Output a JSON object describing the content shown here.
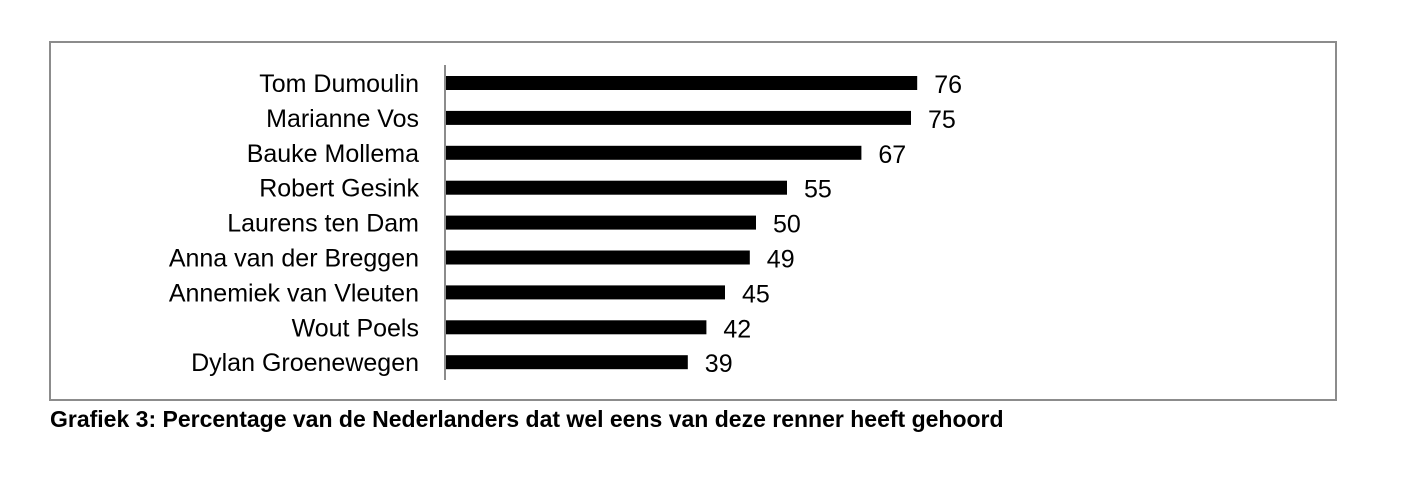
{
  "caption": "Grafiek 3: Percentage van de Nederlanders dat wel eens van deze renner heeft gehoord",
  "chart_data": {
    "type": "bar",
    "orientation": "horizontal",
    "categories": [
      "Tom Dumoulin",
      "Marianne Vos",
      "Bauke Mollema",
      "Robert Gesink",
      "Laurens ten Dam",
      "Anna van der Breggen",
      "Annemiek van Vleuten",
      "Wout Poels",
      "Dylan Groenewegen"
    ],
    "values": [
      76,
      75,
      67,
      55,
      50,
      49,
      45,
      42,
      39
    ],
    "title": "",
    "xlabel": "",
    "ylabel": "",
    "xlim": [
      0,
      100
    ],
    "grid": false,
    "legend": "none",
    "data_labels": true,
    "bar_color": "#000000",
    "axis_color": "#8c8c8c",
    "frame_color": "#8c8c8c"
  }
}
